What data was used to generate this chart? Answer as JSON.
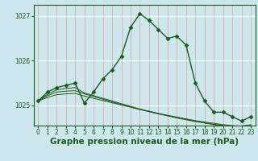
{
  "title": "Graphe pression niveau de la mer (hPa)",
  "background_color": "#cce8ee",
  "plot_bg_color": "#cce8ee",
  "grid_color_v": "#e8a0a0",
  "grid_color_h": "#ffffff",
  "line_color": "#1a5c1a",
  "marker_color": "#1a5c1a",
  "ylim": [
    1024.55,
    1027.25
  ],
  "xlim": [
    -0.5,
    23.5
  ],
  "yticks": [
    1025,
    1026,
    1027
  ],
  "xticks": [
    0,
    1,
    2,
    3,
    4,
    5,
    6,
    7,
    8,
    9,
    10,
    11,
    12,
    13,
    14,
    15,
    16,
    17,
    18,
    19,
    20,
    21,
    22,
    23
  ],
  "series": [
    {
      "x": [
        0,
        1,
        2,
        3,
        4,
        5,
        6,
        7,
        8,
        9,
        10,
        11,
        12,
        13,
        14,
        15,
        16,
        17,
        18,
        19,
        20,
        21,
        22,
        23
      ],
      "y": [
        1025.1,
        1025.3,
        1025.4,
        1025.45,
        1025.5,
        1025.05,
        1025.3,
        1025.6,
        1025.8,
        1026.1,
        1026.75,
        1027.05,
        1026.9,
        1026.7,
        1026.5,
        1026.55,
        1026.35,
        1025.5,
        1025.1,
        1024.85,
        1024.85,
        1024.75,
        1024.65,
        1024.75
      ],
      "marker": true,
      "linewidth": 1.0
    },
    {
      "x": [
        0,
        1,
        2,
        3,
        4,
        5,
        6,
        7,
        8,
        9,
        10,
        11,
        12,
        13,
        14,
        15,
        16,
        17,
        18,
        19,
        20,
        21,
        22,
        23
      ],
      "y": [
        1025.1,
        1025.25,
        1025.35,
        1025.38,
        1025.4,
        1025.28,
        1025.22,
        1025.16,
        1025.1,
        1025.04,
        1024.98,
        1024.92,
        1024.87,
        1024.82,
        1024.77,
        1024.73,
        1024.69,
        1024.65,
        1024.61,
        1024.58,
        1024.55,
        1024.53,
        1024.52,
        1024.55
      ],
      "marker": false,
      "linewidth": 0.7
    },
    {
      "x": [
        0,
        1,
        2,
        3,
        4,
        5,
        6,
        7,
        8,
        9,
        10,
        11,
        12,
        13,
        14,
        15,
        16,
        17,
        18,
        19,
        20,
        21,
        22,
        23
      ],
      "y": [
        1025.1,
        1025.22,
        1025.3,
        1025.32,
        1025.33,
        1025.26,
        1025.2,
        1025.14,
        1025.08,
        1025.02,
        1024.97,
        1024.91,
        1024.86,
        1024.81,
        1024.77,
        1024.72,
        1024.68,
        1024.64,
        1024.61,
        1024.57,
        1024.54,
        1024.52,
        1024.51,
        1024.54
      ],
      "marker": false,
      "linewidth": 0.7
    },
    {
      "x": [
        0,
        1,
        2,
        3,
        4,
        5,
        6,
        7,
        8,
        9,
        10,
        11,
        12,
        13,
        14,
        15,
        16,
        17,
        18,
        19,
        20,
        21,
        22,
        23
      ],
      "y": [
        1025.1,
        1025.18,
        1025.24,
        1025.26,
        1025.27,
        1025.21,
        1025.16,
        1025.11,
        1025.06,
        1025.01,
        1024.96,
        1024.91,
        1024.87,
        1024.82,
        1024.78,
        1024.74,
        1024.7,
        1024.66,
        1024.63,
        1024.6,
        1024.57,
        1024.55,
        1024.54,
        1024.57
      ],
      "marker": false,
      "linewidth": 0.7
    }
  ],
  "title_fontsize": 7.5,
  "tick_fontsize": 5.5
}
